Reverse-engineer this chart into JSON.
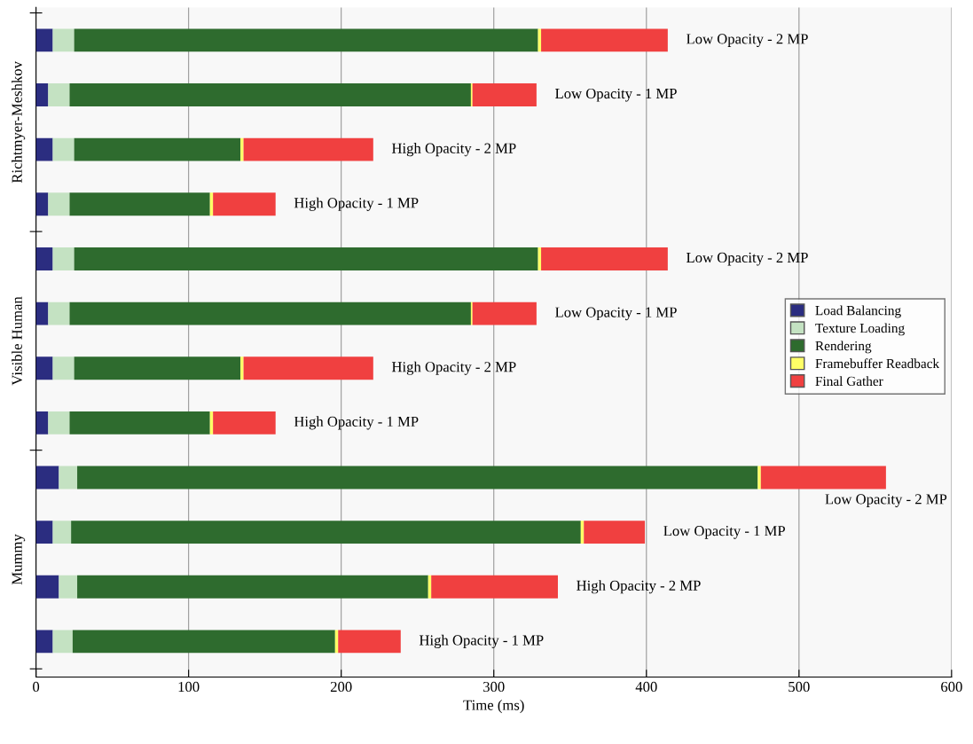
{
  "chart_data": {
    "type": "bar",
    "orientation": "horizontal",
    "stacked": true,
    "xlabel": "Time (ms)",
    "categories": [
      "Low Opacity - 2 MP",
      "Low Opacity - 1 MP",
      "High Opacity - 2 MP",
      "High Opacity - 1 MP",
      "Low Opacity - 2 MP",
      "Low Opacity - 1 MP",
      "High Opacity - 2 MP",
      "High Opacity - 1 MP",
      "Low Opacity - 2 MP",
      "Low Opacity - 1 MP",
      "High Opacity - 2 MP",
      "High Opacity - 1 MP"
    ],
    "annotations": [
      "Richtmyer-Meshkov",
      "Visible Human",
      "Mummy"
    ],
    "series": [
      {
        "name": "Load Balancing",
        "color": "#2b2d80",
        "values": [
          11,
          8,
          11,
          8,
          11,
          8,
          11,
          8,
          15,
          11,
          15,
          11
        ]
      },
      {
        "name": "Texture Loading",
        "color": "#c4e2c2",
        "values": [
          14,
          14,
          14,
          14,
          14,
          14,
          14,
          14,
          12,
          12,
          12,
          13
        ]
      },
      {
        "name": "Rendering",
        "color": "#2e6b2e",
        "values": [
          304,
          263,
          109,
          92,
          304,
          263,
          109,
          92,
          446,
          334,
          230,
          172
        ]
      },
      {
        "name": "Framebuffer Readback",
        "color": "#ffff66",
        "values": [
          2,
          1,
          2,
          2,
          2,
          1,
          2,
          2,
          2,
          2,
          2,
          2
        ]
      },
      {
        "name": "Final Gather",
        "color": "#f04040",
        "values": [
          83,
          42,
          85,
          41,
          83,
          42,
          85,
          41,
          82,
          40,
          83,
          41
        ]
      }
    ],
    "xlim": [
      0,
      600
    ],
    "xticks": [
      0,
      100,
      200,
      300,
      400,
      500,
      600
    ],
    "grid": "x",
    "legend": "right",
    "tick_labels": "x"
  }
}
